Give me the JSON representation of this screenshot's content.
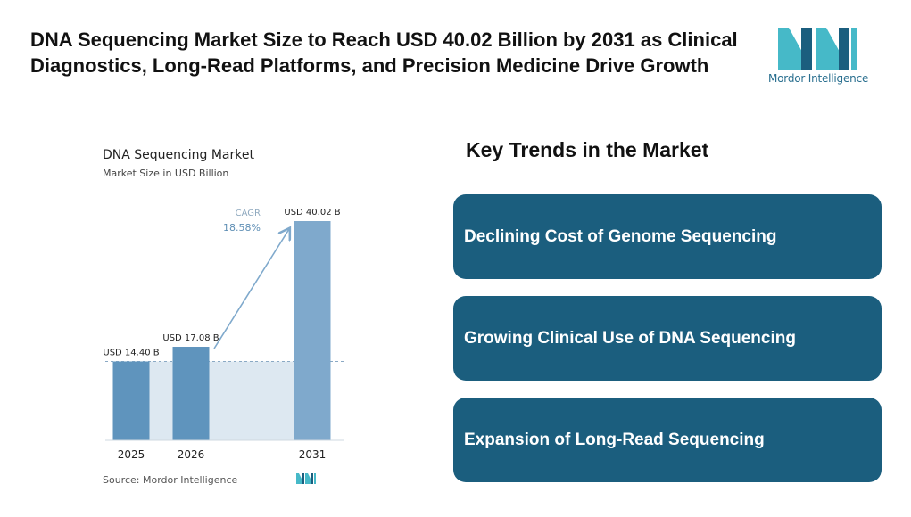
{
  "header": {
    "title": "DNA Sequencing Market Size to Reach USD 40.02 Billion by 2031 as Clinical Diagnostics, Long-Read Platforms, and Precision Medicine Drive Growth",
    "logo_text": "Mordor Intelligence",
    "logo_colors": {
      "teal": "#46b9c8",
      "navy": "#1b5e7e"
    }
  },
  "chart_data": {
    "type": "bar",
    "title": "DNA Sequencing Market",
    "subtitle": "Market Size in USD Billion",
    "categories": [
      "2025",
      "2026",
      "2031"
    ],
    "values": [
      14.4,
      17.08,
      40.02
    ],
    "data_labels": [
      "USD 14.40 B",
      "USD 17.08 B",
      "USD 40.02 B"
    ],
    "annotation": {
      "label": "CAGR",
      "value": "18.58%"
    },
    "ylim": [
      0,
      40.02
    ],
    "bar_color": "#5f94bd",
    "bar_color_light": "#7fa9cc",
    "reference_fill": "#dde8f1",
    "grid": false,
    "source": "Source:  Mordor Intelligence"
  },
  "trends": {
    "heading": "Key Trends in the Market",
    "items": [
      "Declining Cost of Genome Sequencing",
      "Growing Clinical Use of DNA Sequencing",
      "Expansion of Long-Read Sequencing"
    ],
    "card_color": "#1b5e7e"
  }
}
